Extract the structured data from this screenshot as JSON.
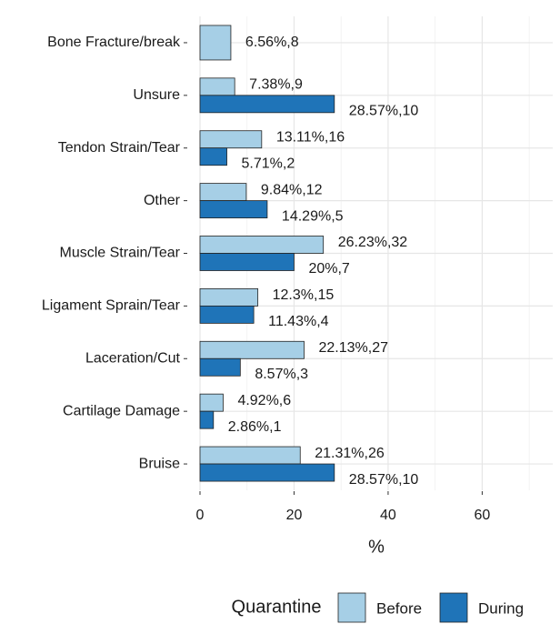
{
  "chart_data": {
    "type": "bar",
    "orientation": "horizontal",
    "x_label": "%",
    "categories": [
      "Bone Fracture/break",
      "Unsure",
      "Tendon Strain/Tear",
      "Other",
      "Muscle Strain/Tear",
      "Ligament Sprain/Tear",
      "Laceration/Cut",
      "Cartilage Damage",
      "Bruise"
    ],
    "series": [
      {
        "name": "Before",
        "color": "#a6cfe6",
        "values": [
          6.56,
          7.38,
          13.11,
          9.84,
          26.23,
          12.3,
          22.13,
          4.92,
          21.31
        ],
        "value_labels": [
          "6.56%,8",
          "7.38%,9",
          "13.11%,16",
          "9.84%,12",
          "26.23%,32",
          "12.3%,15",
          "22.13%,27",
          "4.92%,6",
          "21.31%,26"
        ]
      },
      {
        "name": "During",
        "color": "#1f74b8",
        "values": [
          null,
          28.57,
          5.71,
          14.29,
          20,
          11.43,
          8.57,
          2.86,
          28.57
        ],
        "value_labels": [
          null,
          "28.57%,10",
          "5.71%,2",
          "14.29%,5",
          "20%,7",
          "11.43%,4",
          "8.57%,3",
          "2.86%,1",
          "28.57%,10"
        ]
      }
    ],
    "legend_title": "Quarantine",
    "legend": "bottom",
    "xlim": [
      0,
      75
    ],
    "xticks": [
      0,
      20,
      40,
      60
    ],
    "minor_xticks": [
      10,
      30,
      50,
      70
    ],
    "grid": true
  }
}
